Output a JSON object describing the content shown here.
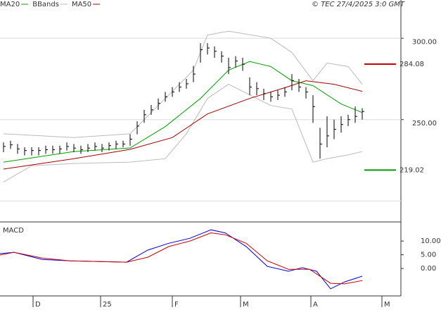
{
  "chart_data": [
    {
      "type": "ohlc",
      "legend": "top-left",
      "credit": "© TEC 27/4/2025 3:0 GMT",
      "xlim": [
        -0.5,
        56.5
      ],
      "ylim": [
        188,
        317
      ],
      "yticks": [
        {
          "value": 300,
          "label": "300.00"
        },
        {
          "value": 250,
          "label": "250.00"
        }
      ],
      "extra_grid": [
        200
      ],
      "grid": true,
      "price": {
        "color": "#000000",
        "x": [
          0,
          1,
          2,
          3,
          4,
          5,
          6,
          7,
          8,
          9,
          10,
          11,
          12,
          13,
          14,
          15,
          16,
          17,
          18,
          19,
          20,
          21,
          22,
          23,
          24,
          25,
          26,
          27,
          28,
          29,
          30,
          31,
          32,
          33,
          34,
          35,
          36,
          37,
          38,
          39,
          40,
          41,
          42,
          43,
          44,
          45,
          46,
          47,
          48,
          49,
          50,
          51
        ],
        "high": [
          236,
          237,
          235,
          233,
          233,
          233,
          234,
          234,
          234,
          236,
          235,
          234,
          235,
          236,
          235,
          236,
          237,
          237,
          241,
          249,
          256,
          259,
          263,
          267,
          270,
          273,
          275,
          283,
          297,
          297,
          295,
          292,
          288,
          289,
          288,
          276,
          273,
          269,
          267,
          268,
          270,
          278,
          275,
          270,
          265,
          245,
          252,
          250,
          252,
          253,
          258,
          257
        ],
        "low": [
          230,
          232,
          229,
          228,
          228,
          228,
          229,
          229,
          229,
          231,
          230,
          229,
          230,
          231,
          230,
          231,
          232,
          233,
          234,
          241,
          248,
          253,
          256,
          261,
          264,
          267,
          269,
          273,
          285,
          290,
          288,
          285,
          278,
          282,
          280,
          265,
          265,
          262,
          261,
          262,
          264,
          268,
          267,
          263,
          248,
          226,
          233,
          238,
          242,
          246,
          248,
          250
        ],
        "close": [
          233.5,
          234.5,
          232,
          231,
          231,
          231,
          231.5,
          231.5,
          232,
          233.5,
          232.5,
          231.5,
          232.5,
          233.5,
          232.5,
          234,
          235,
          235,
          238,
          246,
          253,
          256,
          260,
          264,
          267,
          270,
          272,
          278,
          293,
          294,
          292,
          289,
          282,
          286,
          284,
          270,
          269,
          266,
          264,
          265,
          267,
          274,
          270,
          267,
          258,
          235,
          240,
          244,
          247,
          250,
          252,
          255
        ]
      },
      "series": [
        {
          "name": "MA20",
          "color": "#00a000",
          "x": [
            0,
            10,
            18,
            23,
            28,
            32,
            35,
            38,
            41,
            44,
            48,
            51
          ],
          "values": [
            223.9,
            230.4,
            232.6,
            245.7,
            263,
            280.4,
            285.7,
            282.6,
            273.9,
            270.9,
            259.6,
            254.3
          ]
        },
        {
          "name": "BBands",
          "color": "#bbbbbb",
          "upper": {
            "x": [
              0,
              10,
              18,
              23,
              27,
              29,
              32,
              38,
              41,
              44,
              46,
              49,
              51
            ],
            "values": [
              241.3,
              239,
              241.3,
              263,
              280.4,
              302,
              304.3,
              300,
              291.3,
              273.9,
              284.8,
              282.6,
              271.7
            ]
          },
          "lower": {
            "x": [
              0,
              4,
              10,
              18,
              23,
              26,
              29,
              32,
              38,
              41,
              44,
              46,
              49,
              51
            ],
            "values": [
              211.7,
              221.7,
              223,
              223.9,
              226,
              241.3,
              263,
              271.7,
              258.7,
              256.5,
              223.9,
              226,
              228.3,
              230.4
            ]
          }
        },
        {
          "name": "MA50",
          "color": "#a00000",
          "x": [
            0,
            10,
            18,
            24,
            29,
            35,
            40,
            43,
            47,
            51
          ],
          "values": [
            219.6,
            226,
            231.7,
            239,
            253.5,
            263,
            269.6,
            273.9,
            271.7,
            267.4
          ]
        }
      ],
      "levels": [
        {
          "value": 284.08,
          "label": "284.08",
          "color": "#c00000"
        },
        {
          "value": 219.02,
          "label": "219.02",
          "color": "#009900"
        }
      ]
    },
    {
      "type": "line",
      "title": "MACD",
      "xlim": [
        -0.5,
        56.5
      ],
      "ylim": [
        -10,
        16.2
      ],
      "yticks": [
        {
          "value": 10,
          "label": "10.00"
        },
        {
          "value": 5,
          "label": "5.00"
        },
        {
          "value": 0,
          "label": "0.00"
        }
      ],
      "xticks": [
        {
          "value": 4.2,
          "label": "D"
        },
        {
          "value": 13.8,
          "label": "25"
        },
        {
          "value": 24,
          "label": "F"
        },
        {
          "value": 33.7,
          "label": "M"
        },
        {
          "value": 43.7,
          "label": "A"
        },
        {
          "value": 53.8,
          "label": "M"
        }
      ],
      "series": [
        {
          "color": "#0000dd",
          "x": [
            -0.5,
            1.5,
            5.5,
            9.5,
            17.5,
            20.5,
            23.5,
            26.5,
            29.5,
            31.5,
            34.5,
            37.5,
            40.5,
            42.5,
            44.5,
            46.5,
            48.5,
            51
          ],
          "values": [
            5.4,
            5.9,
            3.3,
            2.8,
            2.3,
            6.7,
            9.2,
            11,
            14.1,
            13,
            8,
            0.8,
            -1,
            0.3,
            -1,
            -7.4,
            -4.9,
            -2.8
          ]
        },
        {
          "color": "#cc0000",
          "x": [
            -0.5,
            1.5,
            5.5,
            9.5,
            17.5,
            20.5,
            23.5,
            26.5,
            29.5,
            31.5,
            34.5,
            37.5,
            40.5,
            43.5,
            46.5,
            48.5,
            51
          ],
          "values": [
            4.9,
            5.9,
            3.8,
            2.8,
            2.3,
            4.1,
            8,
            10,
            13,
            12.3,
            9.2,
            2.8,
            -0.3,
            -0.3,
            -5.4,
            -5.6,
            -4.4
          ]
        }
      ]
    }
  ]
}
